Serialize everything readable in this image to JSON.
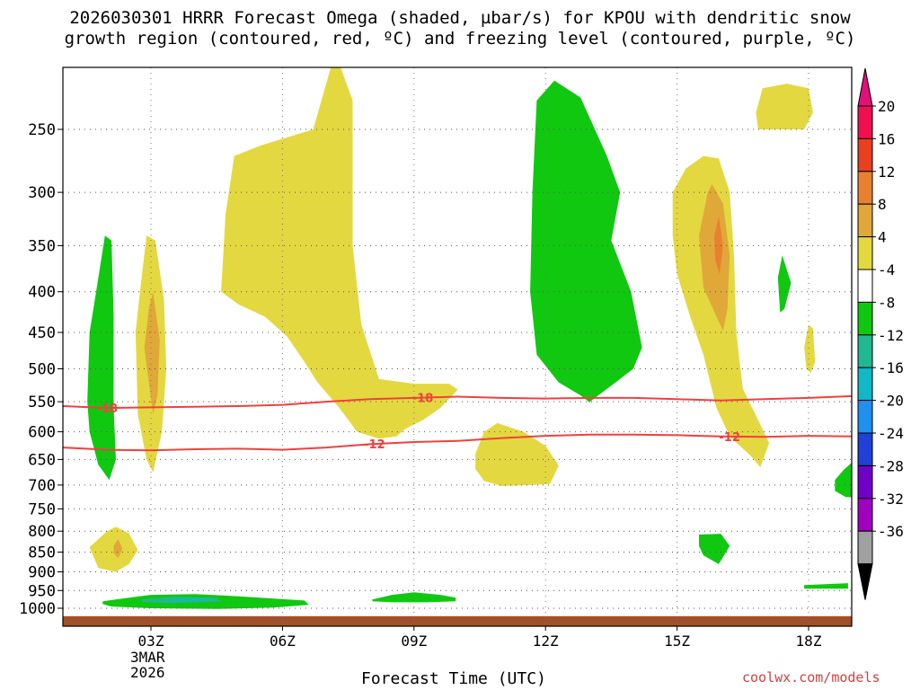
{
  "title_line1": "2026030301 HRRR Forecast Omega (shaded, µbar/s) for KPOU with dendritic snow",
  "title_line2": "growth region (contoured, red, ºC) and freezing level (contoured, purple, ºC)",
  "credit": "coolwx.com/models",
  "chart_data": {
    "type": "time-height cross section",
    "xlabel": "Forecast Time (UTC)",
    "x_hours": [
      0,
      3,
      6,
      9,
      12,
      15,
      18
    ],
    "x_tick_labels": [
      "03Z",
      "06Z",
      "09Z",
      "12Z",
      "15Z",
      "18Z"
    ],
    "x_tick_hours": [
      2,
      5,
      8,
      11,
      14,
      17
    ],
    "x_range_hours": [
      0,
      18
    ],
    "date_label_line1": "3MAR",
    "date_label_line2": "2026",
    "y_unit": "hPa",
    "y_ticks": [
      250,
      300,
      350,
      400,
      450,
      500,
      550,
      600,
      650,
      700,
      750,
      800,
      850,
      900,
      950,
      1000
    ],
    "y_range": [
      200,
      1020
    ],
    "gridlines": true,
    "colorbar": {
      "label_unit": "µbar/s",
      "levels": [
        "20",
        "16",
        "12",
        "8",
        "4",
        "-4",
        "-8",
        "-12",
        "-16",
        "-20",
        "-24",
        "-28",
        "-32",
        "-36"
      ],
      "colors": [
        "#f01050",
        "#e84020",
        "#e88030",
        "#e0a838",
        "#e4d840",
        "#ffffff",
        "#10c810",
        "#20b890",
        "#10b8c8",
        "#2090f0",
        "#2040d8",
        "#7000c8",
        "#a000c0",
        "#a0a0a0"
      ],
      "top_triangle_color": "#e0107a",
      "bottom_triangle_color": "#000000"
    },
    "contours": [
      {
        "name": "-18 °C",
        "label": "-18",
        "color": "#f04040",
        "points": [
          [
            0.0,
            557
          ],
          [
            1.0,
            560
          ],
          [
            2.0,
            559
          ],
          [
            3.0,
            558
          ],
          [
            4.0,
            557
          ],
          [
            5.0,
            555
          ],
          [
            6.0,
            550
          ],
          [
            7.0,
            546
          ],
          [
            8.0,
            544
          ],
          [
            9.0,
            542
          ],
          [
            10.0,
            544
          ],
          [
            11.0,
            545
          ],
          [
            12.0,
            544
          ],
          [
            13.0,
            544
          ],
          [
            14.0,
            546
          ],
          [
            15.0,
            548
          ],
          [
            16.0,
            546
          ],
          [
            17.0,
            544
          ],
          [
            18.0,
            541
          ]
        ],
        "label_positions": [
          1.0,
          8.2
        ]
      },
      {
        "name": "-12 °C",
        "label": "-12",
        "color": "#f04040",
        "points": [
          [
            0.0,
            628
          ],
          [
            1.0,
            632
          ],
          [
            2.0,
            633
          ],
          [
            3.0,
            631
          ],
          [
            4.0,
            630
          ],
          [
            5.0,
            632
          ],
          [
            6.0,
            628
          ],
          [
            7.0,
            622
          ],
          [
            8.0,
            618
          ],
          [
            9.0,
            616
          ],
          [
            10.0,
            611
          ],
          [
            11.0,
            607
          ],
          [
            12.0,
            605
          ],
          [
            13.0,
            605
          ],
          [
            14.0,
            606
          ],
          [
            15.0,
            608
          ],
          [
            16.0,
            609
          ],
          [
            17.0,
            607
          ],
          [
            18.0,
            608
          ]
        ],
        "label_positions": [
          7.1,
          15.2
        ]
      }
    ],
    "regions": [
      {
        "value": "4 to 8",
        "color": "#e4d840",
        "points": [
          [
            0.6,
            838
          ],
          [
            1.0,
            800
          ],
          [
            1.2,
            790
          ],
          [
            1.5,
            805
          ],
          [
            1.7,
            845
          ],
          [
            1.5,
            880
          ],
          [
            1.2,
            900
          ],
          [
            0.8,
            890
          ]
        ]
      },
      {
        "value": "8 to 12",
        "color": "#e0a838",
        "points": [
          [
            1.15,
            835
          ],
          [
            1.25,
            818
          ],
          [
            1.35,
            842
          ],
          [
            1.25,
            865
          ],
          [
            1.15,
            852
          ]
        ]
      },
      {
        "value": "-4 to -8",
        "color": "#10c810",
        "points": [
          [
            0.55,
            550
          ],
          [
            0.6,
            450
          ],
          [
            0.75,
            400
          ],
          [
            0.95,
            340
          ],
          [
            1.1,
            345
          ],
          [
            1.15,
            430
          ],
          [
            1.15,
            560
          ],
          [
            1.2,
            650
          ],
          [
            1.05,
            690
          ],
          [
            0.8,
            660
          ],
          [
            0.6,
            600
          ]
        ]
      },
      {
        "value": "4 to 8",
        "color": "#e4d840",
        "points": [
          [
            1.65,
            450
          ],
          [
            1.75,
            400
          ],
          [
            1.9,
            340
          ],
          [
            2.1,
            345
          ],
          [
            2.3,
            410
          ],
          [
            2.35,
            500
          ],
          [
            2.25,
            600
          ],
          [
            2.05,
            675
          ],
          [
            1.9,
            650
          ],
          [
            1.7,
            570
          ]
        ]
      },
      {
        "value": "8 to 12",
        "color": "#e0a838",
        "points": [
          [
            1.85,
            470
          ],
          [
            1.95,
            420
          ],
          [
            2.05,
            400
          ],
          [
            2.2,
            460
          ],
          [
            2.15,
            540
          ],
          [
            2.05,
            570
          ],
          [
            1.95,
            520
          ]
        ]
      },
      {
        "value": "4 to 8",
        "color": "#e4d840",
        "points": [
          [
            3.6,
            400
          ],
          [
            3.7,
            320
          ],
          [
            3.9,
            270
          ],
          [
            4.5,
            262
          ],
          [
            5.7,
            250
          ],
          [
            6.2,
            200
          ],
          [
            6.6,
            230
          ],
          [
            6.6,
            350
          ],
          [
            6.8,
            440
          ],
          [
            7.2,
            515
          ],
          [
            8.0,
            522
          ],
          [
            8.8,
            522
          ],
          [
            9.0,
            531
          ],
          [
            8.6,
            560
          ],
          [
            8.2,
            580
          ],
          [
            7.8,
            595
          ],
          [
            7.6,
            608
          ],
          [
            7.2,
            612
          ],
          [
            6.7,
            600
          ],
          [
            6.3,
            560
          ],
          [
            5.8,
            520
          ],
          [
            5.5,
            490
          ],
          [
            5.1,
            455
          ],
          [
            4.6,
            430
          ],
          [
            4.0,
            415
          ]
        ]
      },
      {
        "value": "4 to 8",
        "color": "#e4d840",
        "points": [
          [
            9.4,
            640
          ],
          [
            9.6,
            600
          ],
          [
            9.9,
            585
          ],
          [
            10.5,
            600
          ],
          [
            11.0,
            625
          ],
          [
            11.3,
            662
          ],
          [
            11.1,
            698
          ],
          [
            10.6,
            700
          ],
          [
            10.0,
            702
          ],
          [
            9.6,
            692
          ],
          [
            9.4,
            668
          ]
        ]
      },
      {
        "value": "-4 to -8",
        "color": "#10c810",
        "points": [
          [
            10.65,
            400
          ],
          [
            10.7,
            300
          ],
          [
            10.8,
            230
          ],
          [
            11.2,
            217
          ],
          [
            11.8,
            228
          ],
          [
            12.4,
            270
          ],
          [
            12.7,
            300
          ],
          [
            12.5,
            345
          ],
          [
            12.95,
            400
          ],
          [
            13.2,
            470
          ],
          [
            13.0,
            500
          ],
          [
            12.6,
            520
          ],
          [
            12.2,
            540
          ],
          [
            12.0,
            551
          ],
          [
            11.8,
            540
          ],
          [
            11.3,
            520
          ],
          [
            10.8,
            480
          ]
        ]
      },
      {
        "value": "4 to 8",
        "color": "#e4d840",
        "points": [
          [
            13.9,
            300
          ],
          [
            14.2,
            280
          ],
          [
            14.6,
            270
          ],
          [
            14.95,
            272
          ],
          [
            15.2,
            300
          ],
          [
            15.3,
            360
          ],
          [
            15.35,
            450
          ],
          [
            15.5,
            530
          ],
          [
            15.85,
            580
          ],
          [
            16.1,
            620
          ],
          [
            15.9,
            665
          ],
          [
            15.7,
            645
          ],
          [
            15.2,
            608
          ],
          [
            14.9,
            560
          ],
          [
            14.6,
            480
          ],
          [
            14.3,
            430
          ],
          [
            14.0,
            380
          ],
          [
            13.9,
            340
          ]
        ]
      },
      {
        "value": "8 to 12",
        "color": "#e0a838",
        "points": [
          [
            14.5,
            340
          ],
          [
            14.7,
            300
          ],
          [
            14.8,
            293
          ],
          [
            15.05,
            310
          ],
          [
            15.2,
            360
          ],
          [
            15.15,
            420
          ],
          [
            15.05,
            448
          ],
          [
            14.9,
            430
          ],
          [
            14.6,
            395
          ]
        ]
      },
      {
        "value": "12 to 16",
        "color": "#e88030",
        "points": [
          [
            14.85,
            340
          ],
          [
            14.95,
            322
          ],
          [
            15.05,
            350
          ],
          [
            14.97,
            380
          ],
          [
            14.87,
            365
          ]
        ]
      },
      {
        "value": "4 to 8",
        "color": "#e4d840",
        "points": [
          [
            15.8,
            238
          ],
          [
            15.95,
            222
          ],
          [
            16.5,
            219
          ],
          [
            17.0,
            222
          ],
          [
            17.1,
            238
          ],
          [
            16.9,
            250
          ],
          [
            16.3,
            250
          ],
          [
            15.85,
            250
          ]
        ]
      },
      {
        "value": "-4 to -8",
        "color": "#10c810",
        "points": [
          [
            16.3,
            384
          ],
          [
            16.4,
            360
          ],
          [
            16.6,
            390
          ],
          [
            16.45,
            420
          ],
          [
            16.35,
            425
          ]
        ]
      },
      {
        "value": "4 to 8",
        "color": "#e4d840",
        "points": [
          [
            16.9,
            470
          ],
          [
            17.0,
            440
          ],
          [
            17.1,
            445
          ],
          [
            17.15,
            490
          ],
          [
            17.05,
            506
          ],
          [
            16.95,
            500
          ]
        ]
      },
      {
        "value": "-4 to -8",
        "color": "#10c810",
        "points": [
          [
            14.5,
            808
          ],
          [
            15.0,
            806
          ],
          [
            15.2,
            835
          ],
          [
            14.95,
            880
          ],
          [
            14.6,
            858
          ],
          [
            14.5,
            835
          ]
        ]
      },
      {
        "value": "-4 to -8",
        "color": "#10c810",
        "points": [
          [
            17.6,
            690
          ],
          [
            17.8,
            670
          ],
          [
            18.0,
            655
          ],
          [
            18.05,
            725
          ],
          [
            17.85,
            725
          ],
          [
            17.6,
            712
          ]
        ]
      },
      {
        "value": "-4 to -8",
        "color": "#10c810",
        "points": [
          [
            16.9,
            935
          ],
          [
            17.9,
            930
          ],
          [
            17.9,
            945
          ],
          [
            16.9,
            945
          ]
        ]
      },
      {
        "value": "-4 to -8",
        "color": "#10c810",
        "points": [
          [
            0.9,
            980
          ],
          [
            1.5,
            970
          ],
          [
            2.0,
            962
          ],
          [
            3.0,
            960
          ],
          [
            4.0,
            966
          ],
          [
            5.5,
            978
          ],
          [
            5.6,
            990
          ],
          [
            4.8,
            998
          ],
          [
            3.5,
            1002
          ],
          [
            2.0,
            1000
          ],
          [
            1.1,
            995
          ],
          [
            0.9,
            988
          ]
        ]
      },
      {
        "value": "-8 to -12",
        "color": "#20b890",
        "points": [
          [
            1.8,
            975
          ],
          [
            2.5,
            968
          ],
          [
            3.5,
            970
          ],
          [
            3.6,
            980
          ],
          [
            2.5,
            985
          ],
          [
            1.8,
            982
          ]
        ]
      },
      {
        "value": "-12 to -16",
        "color": "#10b8c8",
        "points": [
          [
            2.5,
            974
          ],
          [
            3.3,
            974
          ],
          [
            3.3,
            979
          ],
          [
            2.5,
            979
          ]
        ]
      },
      {
        "value": "-4 to -8",
        "color": "#10c810",
        "points": [
          [
            7.05,
            975
          ],
          [
            7.5,
            962
          ],
          [
            8.0,
            955
          ],
          [
            8.6,
            962
          ],
          [
            8.95,
            970
          ],
          [
            8.95,
            980
          ],
          [
            8.3,
            983
          ],
          [
            7.5,
            983
          ],
          [
            7.05,
            980
          ]
        ]
      }
    ],
    "terrain_band": {
      "top_hPa": 1010,
      "color": "#a0502a"
    }
  }
}
